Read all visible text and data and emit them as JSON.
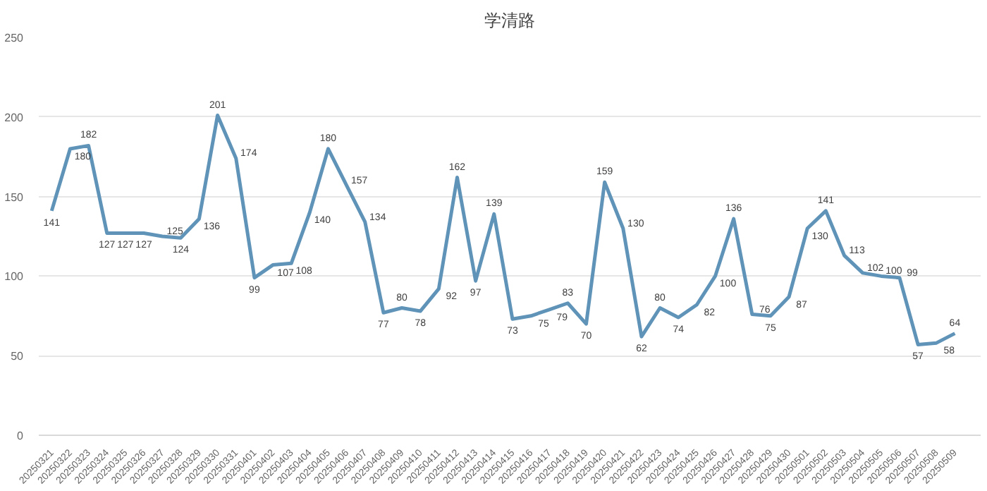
{
  "chart_data": {
    "type": "line",
    "title": "学清路",
    "categories": [
      "20250321",
      "20250322",
      "20250323",
      "20250324",
      "20250325",
      "20250326",
      "20250327",
      "20250328",
      "20250329",
      "20250330",
      "20250331",
      "20250401",
      "20250402",
      "20250403",
      "20250404",
      "20250405",
      "20250406",
      "20250407",
      "20250408",
      "20250409",
      "20250410",
      "20250411",
      "20250412",
      "20250413",
      "20250414",
      "20250415",
      "20250416",
      "20250417",
      "20250418",
      "20250419",
      "20250420",
      "20250421",
      "20250422",
      "20250423",
      "20250424",
      "20250425",
      "20250426",
      "20250427",
      "20250428",
      "20250429",
      "20250430",
      "20250501",
      "20250502",
      "20250503",
      "20250504",
      "20250505",
      "20250506",
      "20250507",
      "20250508",
      "20250509"
    ],
    "series": [
      {
        "color": "#5f93b8",
        "values": [
          141,
          180,
          182,
          127,
          127,
          127,
          125,
          124,
          136,
          201,
          174,
          99,
          107,
          108,
          140,
          180,
          157,
          134,
          77,
          80,
          78,
          92,
          162,
          97,
          139,
          73,
          75,
          79,
          83,
          70,
          159,
          130,
          62,
          80,
          74,
          82,
          100,
          136,
          76,
          75,
          87,
          130,
          141,
          113,
          102,
          100,
          99,
          57,
          58,
          64
        ]
      }
    ],
    "ylim": [
      0,
      250
    ],
    "yticks": [
      0,
      50,
      100,
      150,
      200,
      250
    ],
    "grid": "y",
    "data_labels": true,
    "marker": "none",
    "line_style": "solid"
  }
}
